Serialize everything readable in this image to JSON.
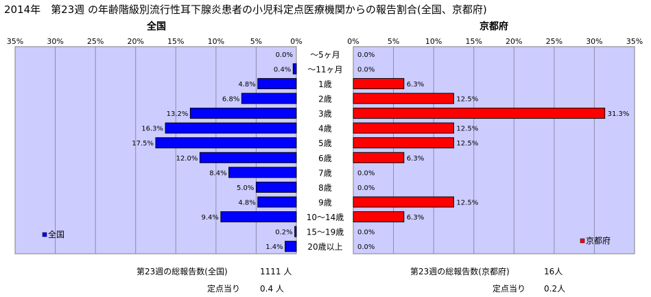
{
  "title": "2014年　第23週 の年齢階級別流行性耳下腺炎患者の小児科定点医療機関からの報告割合(全国、京都府)",
  "chart_data": {
    "type": "bar",
    "categories": [
      "～5ヶ月",
      "～11ヶ月",
      "1歳",
      "2歳",
      "3歳",
      "4歳",
      "5歳",
      "6歳",
      "7歳",
      "8歳",
      "9歳",
      "10～14歳",
      "15～19歳",
      "20歳以上"
    ],
    "xlim": [
      0,
      35
    ],
    "tick_labels": [
      "35%",
      "30%",
      "25%",
      "20%",
      "15%",
      "10%",
      "5%",
      "0%"
    ],
    "tick_labels_right": [
      "0%",
      "5%",
      "10%",
      "15%",
      "20%",
      "25%",
      "30%",
      "35%"
    ],
    "series": [
      {
        "name": "全国",
        "panel_title": "全国",
        "color": "#0000ff",
        "values": [
          0.0,
          0.4,
          4.8,
          6.8,
          13.2,
          16.3,
          17.5,
          12.0,
          8.4,
          5.0,
          4.8,
          9.4,
          0.2,
          1.4
        ],
        "labels": [
          "0.0%",
          "0.4%",
          "4.8%",
          "6.8%",
          "13.2%",
          "16.3%",
          "17.5%",
          "12.0%",
          "8.4%",
          "5.0%",
          "4.8%",
          "9.4%",
          "0.2%",
          "1.4%"
        ]
      },
      {
        "name": "京都府",
        "panel_title": "京都府",
        "color": "#ff0000",
        "values": [
          0.0,
          0.0,
          6.3,
          12.5,
          31.3,
          12.5,
          12.5,
          6.3,
          0.0,
          0.0,
          12.5,
          6.3,
          0.0,
          0.0
        ],
        "labels": [
          "0.0%",
          "0.0%",
          "6.3%",
          "12.5%",
          "31.3%",
          "12.5%",
          "12.5%",
          "6.3%",
          "0.0%",
          "0.0%",
          "12.5%",
          "6.3%",
          "0.0%",
          "0.0%"
        ]
      }
    ],
    "plot_background": "#ccccff",
    "grid": true,
    "legend_position": "bottom-left (全国), bottom-right (京都府)"
  },
  "footer": {
    "national_total_label": "第23週の総報告数(全国)",
    "national_total_value": "1111 人",
    "national_per_site_label": "定点当り",
    "national_per_site_value": "0.4 人",
    "kyoto_total_label": "第23週の総報告数(京都府)",
    "kyoto_total_value": "16人",
    "kyoto_per_site_label": "定点当り",
    "kyoto_per_site_value": "0.2人"
  }
}
